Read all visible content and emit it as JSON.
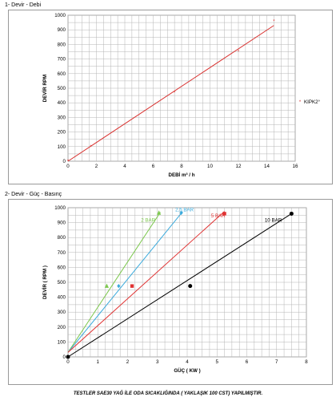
{
  "sections": {
    "first_title": "1- Devir - Debi",
    "second_title": "2- Devir - Güç - Basınç"
  },
  "footer": "TESTLER SAE30 YAĞ İLE ODA SICAKLIĞINDA ( YAKLAŞIK 100 CST) YAPILMIŞTIR.",
  "chart_data": [
    {
      "type": "line",
      "title": "",
      "xlabel": "DEBİ m³ / h",
      "ylabel": "DEVİR RPM",
      "xlim": [
        0,
        16
      ],
      "ylim": [
        0,
        1000
      ],
      "x_ticks": [
        0,
        2,
        4,
        6,
        8,
        10,
        12,
        14,
        16
      ],
      "y_ticks": [
        0,
        100,
        200,
        300,
        400,
        500,
        600,
        700,
        800,
        900,
        1000
      ],
      "grid": true,
      "legend": "right",
      "series": [
        {
          "name": "KIPK2°",
          "color": "#d9312f",
          "marker": "star",
          "x": [
            0,
            1.6,
            7.5,
            12,
            14.5
          ],
          "y": [
            0,
            100,
            470,
            750,
            960
          ]
        }
      ],
      "line": {
        "color": "#d9312f",
        "from": [
          0,
          0
        ],
        "to": [
          14.5,
          930
        ]
      }
    },
    {
      "type": "line",
      "title": "",
      "xlabel": "GÜÇ ( KW )",
      "ylabel": "DEVİR ( RPM )",
      "xlim": [
        0,
        8
      ],
      "ylim": [
        0,
        1000
      ],
      "x_ticks": [
        0,
        1,
        2,
        3,
        4,
        5,
        6,
        7,
        8
      ],
      "y_ticks": [
        0,
        100,
        200,
        300,
        400,
        500,
        600,
        700,
        800,
        900,
        1000
      ],
      "grid": true,
      "series": [
        {
          "name": "2 BAR",
          "color": "#7ec850",
          "marker": "triangle",
          "line": [
            [
              0,
              30
            ],
            [
              3.1,
              970
            ]
          ],
          "points": [
            [
              1.3,
              475
            ],
            [
              3.05,
              965
            ]
          ],
          "label_at": [
            2.45,
            905
          ]
        },
        {
          "name": "2,5 BAR",
          "color": "#3aaadc",
          "marker": "diamond",
          "line": [
            [
              0,
              30
            ],
            [
              3.85,
              975
            ]
          ],
          "points": [
            [
              1.7,
              475
            ],
            [
              3.8,
              965
            ]
          ],
          "label_at": [
            3.6,
            975
          ]
        },
        {
          "name": "5 BAR",
          "color": "#e03232",
          "marker": "square",
          "line": [
            [
              0,
              30
            ],
            [
              5.25,
              975
            ]
          ],
          "points": [
            [
              2.15,
              475
            ],
            [
              5.25,
              960
            ]
          ],
          "label_at": [
            4.8,
            935
          ]
        },
        {
          "name": "10 BAR",
          "color": "#000000",
          "marker": "circle",
          "line": [
            [
              0,
              0
            ],
            [
              7.5,
              960
            ]
          ],
          "points": [
            [
              0,
              0
            ],
            [
              4.1,
              475
            ],
            [
              7.5,
              960
            ]
          ],
          "label_at": [
            6.6,
            905
          ]
        }
      ]
    }
  ]
}
